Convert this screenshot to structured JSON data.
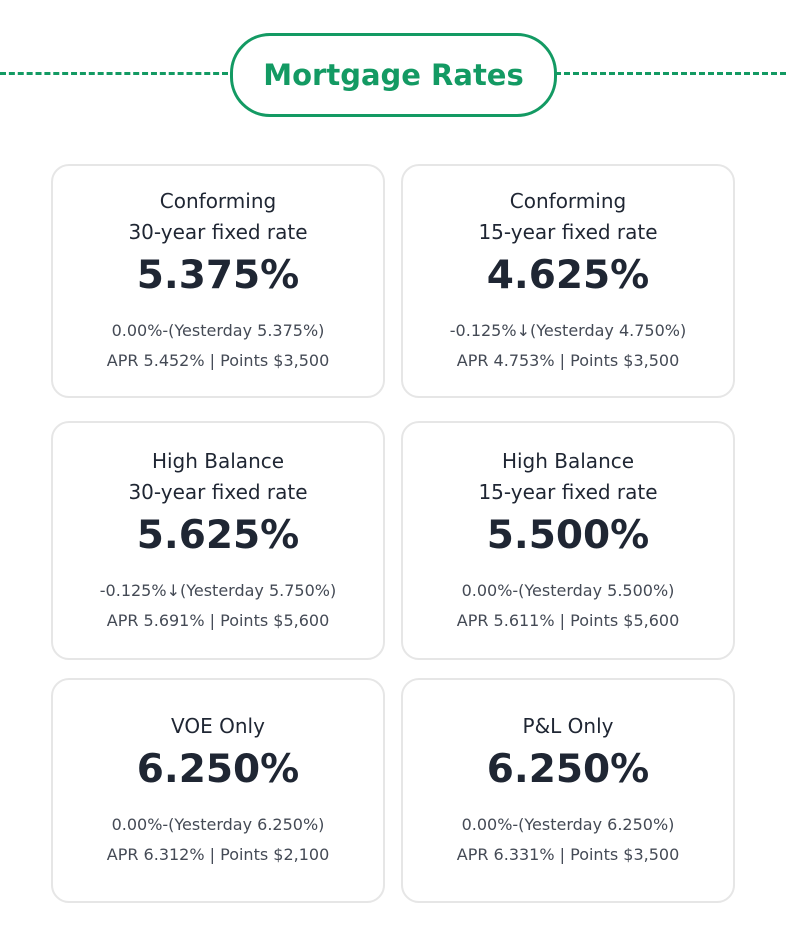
{
  "header": {
    "title": "Mortgage Rates"
  },
  "cards": [
    {
      "title": [
        "Conforming",
        "30-year fixed rate"
      ],
      "rate": "5.375%",
      "change": "0.00%-(Yesterday 5.375%)",
      "details": "APR 5.452% | Points $3,500"
    },
    {
      "title": [
        "Conforming",
        "15-year fixed rate"
      ],
      "rate": "4.625%",
      "change": "-0.125%↓(Yesterday 4.750%)",
      "details": "APR 4.753% | Points $3,500"
    },
    {
      "title": [
        "High Balance",
        "30-year fixed rate"
      ],
      "rate": "5.625%",
      "change": "-0.125%↓(Yesterday 5.750%)",
      "details": "APR 5.691% | Points $5,600"
    },
    {
      "title": [
        "High Balance",
        "15-year fixed rate"
      ],
      "rate": "5.500%",
      "change": "0.00%-(Yesterday 5.500%)",
      "details": "APR 5.611% | Points $5,600"
    },
    {
      "title": [
        "VOE Only"
      ],
      "rate": "6.250%",
      "change": "0.00%-(Yesterday 6.250%)",
      "details": "APR 6.312% | Points $2,100"
    },
    {
      "title": [
        "P&L Only"
      ],
      "rate": "6.250%",
      "change": "0.00%-(Yesterday 6.250%)",
      "details": "APR 6.331% | Points $3,500"
    }
  ]
}
